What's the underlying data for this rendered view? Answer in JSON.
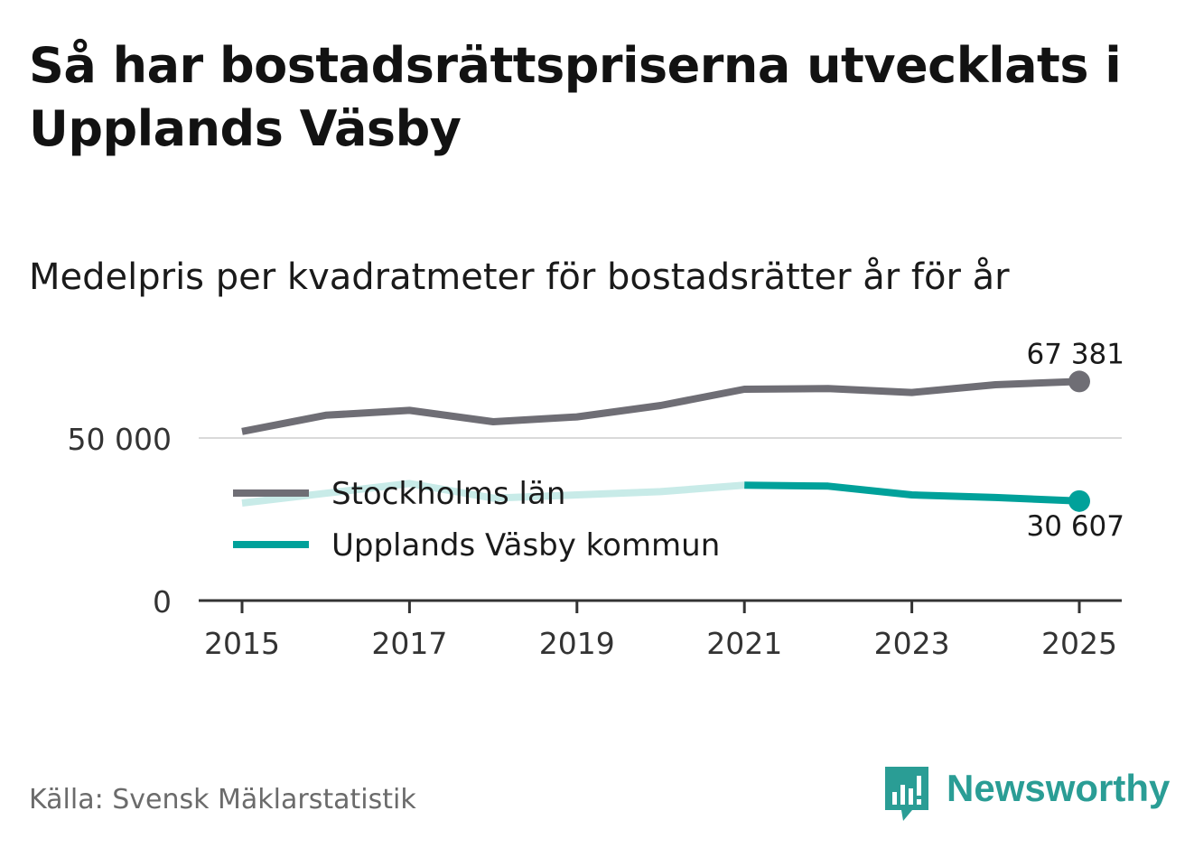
{
  "title": "Så har bostadsrättspriserna utvecklats i Upplands Väsby",
  "subtitle": "Medelpris per kvadratmeter för bostadsrätter år för år",
  "source": "Källa: Svensk Mäklarstatistik",
  "brand": {
    "name": "Newsworthy",
    "color": "#2a9d95",
    "icon": "newsworthy-logo-icon"
  },
  "colors": {
    "stockholm": "#6f6e75",
    "vasby": "#00a19a",
    "vasby_faded": "#c8ebe8",
    "grid": "#d9d9d9",
    "axis": "#333333"
  },
  "chart_data": {
    "type": "line",
    "title": "Medelpris per kvadratmeter för bostadsrätter år för år",
    "xlabel": "",
    "ylabel": "",
    "x": [
      2015,
      2016,
      2017,
      2018,
      2019,
      2020,
      2021,
      2022,
      2023,
      2024,
      2025
    ],
    "x_ticks": [
      "2015",
      "2017",
      "2019",
      "2021",
      "2023",
      "2025"
    ],
    "y_ticks": [
      0,
      50000
    ],
    "y_tick_labels": [
      "0",
      "50 000"
    ],
    "ylim": [
      0,
      72000
    ],
    "highlight_from_x": 2021,
    "series": [
      {
        "name": "Stockholms län",
        "key": "stockholm",
        "values": [
          52000,
          57000,
          58500,
          55000,
          56500,
          60000,
          65000,
          65200,
          64000,
          66400,
          67381
        ]
      },
      {
        "name": "Upplands Väsby kommun",
        "key": "vasby",
        "values": [
          30000,
          33000,
          36000,
          31500,
          32500,
          33500,
          35500,
          35200,
          32500,
          31700,
          30607
        ]
      }
    ],
    "end_labels": [
      {
        "series": "Stockholms län",
        "text": "67 381",
        "position": "above"
      },
      {
        "series": "Upplands Väsby kommun",
        "text": "30 607",
        "position": "below"
      }
    ],
    "legend": [
      "Stockholms län",
      "Upplands Väsby kommun"
    ],
    "legend_position": "middle-left"
  }
}
